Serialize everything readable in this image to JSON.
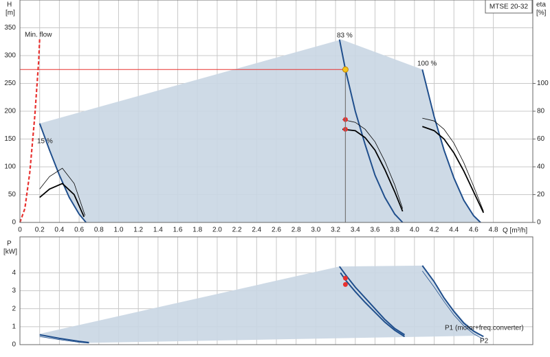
{
  "chart_data": [
    {
      "type": "line",
      "y_label": "H",
      "y_unit": "[m]",
      "y2_label": "eta",
      "y2_unit": "[%]",
      "x_label": "Q [m³/h]",
      "model": "MTSE 20-32",
      "xlim": [
        0,
        5.2
      ],
      "ylim": [
        0,
        400
      ],
      "y2lim": [
        0,
        160
      ],
      "grid": true,
      "xticks": [
        0,
        0.2,
        0.4,
        0.6,
        0.8,
        {
          "value": 1,
          "label": "1.0"
        },
        1.2,
        1.4,
        1.6,
        1.8,
        {
          "value": 2,
          "label": "2.0"
        },
        2.2,
        2.4,
        2.6,
        2.8,
        {
          "value": 3,
          "label": "3.0"
        },
        3.2,
        3.4,
        3.6,
        3.8,
        {
          "value": 4,
          "label": "4.0"
        },
        4.2,
        4.4,
        4.6,
        4.8
      ],
      "yticks": [
        0,
        50,
        100,
        150,
        200,
        250,
        300,
        350
      ],
      "y2ticks": [
        0,
        20,
        40,
        60,
        80,
        100
      ],
      "series": [
        {
          "style": "area",
          "color": "#c9d6e3",
          "x": [
            0.2,
            0.3,
            0.4,
            0.5,
            0.6,
            0.67,
            4.67,
            4.6,
            4.5,
            4.4,
            4.3,
            4.2,
            4.08,
            3.26
          ],
          "values": [
            178,
            130,
            85,
            45,
            15,
            0,
            0,
            12,
            40,
            80,
            130,
            190,
            275,
            329
          ]
        },
        {
          "name": "Min. flow",
          "style": "dashed",
          "color": "#e8312f",
          "x": [
            0,
            0.05,
            0.1,
            0.15,
            0.19,
            0.2
          ],
          "values": [
            0,
            25,
            90,
            190,
            290,
            330
          ]
        },
        {
          "name": "15 %",
          "style": "curve",
          "color": "#1f4e8c",
          "x": [
            0.2,
            0.3,
            0.4,
            0.5,
            0.6,
            0.67
          ],
          "values": [
            178,
            130,
            85,
            45,
            15,
            0
          ]
        },
        {
          "name": "83 %",
          "style": "curve",
          "color": "#1f4e8c",
          "x": [
            3.24,
            3.3,
            3.4,
            3.5,
            3.6,
            3.7,
            3.8,
            3.88
          ],
          "values": [
            329,
            275,
            200,
            140,
            85,
            45,
            15,
            0
          ]
        },
        {
          "name": "100 %",
          "style": "curve",
          "color": "#1f4e8c",
          "x": [
            4.08,
            4.2,
            4.3,
            4.4,
            4.5,
            4.6,
            4.67
          ],
          "values": [
            275,
            190,
            130,
            80,
            40,
            12,
            0
          ]
        },
        {
          "style": "thick",
          "axis": "y2",
          "color": "#000000",
          "x": [
            0.2,
            0.3,
            0.43,
            0.55,
            0.65
          ],
          "values": [
            18,
            24,
            28,
            20,
            4
          ]
        },
        {
          "style": "thin",
          "axis": "y2",
          "color": "#000000",
          "x": [
            0.2,
            0.3,
            0.43,
            0.55,
            0.66
          ],
          "values": [
            24,
            33,
            39,
            28,
            5
          ]
        },
        {
          "style": "thick",
          "axis": "y2",
          "color": "#000000",
          "x": [
            3.27,
            3.4,
            3.5,
            3.6,
            3.7,
            3.8,
            3.88
          ],
          "values": [
            67,
            66,
            61,
            52,
            38,
            22,
            8
          ]
        },
        {
          "style": "thin",
          "axis": "y2",
          "color": "#000000",
          "x": [
            3.27,
            3.4,
            3.5,
            3.6,
            3.7,
            3.8,
            3.88
          ],
          "values": [
            74,
            72,
            67,
            58,
            44,
            27,
            10
          ]
        },
        {
          "style": "thick",
          "axis": "y2",
          "color": "#000000",
          "x": [
            4.08,
            4.2,
            4.3,
            4.4,
            4.5,
            4.6,
            4.7
          ],
          "values": [
            69,
            66,
            60,
            50,
            37,
            22,
            7
          ]
        },
        {
          "style": "thin",
          "axis": "y2",
          "color": "#000000",
          "x": [
            4.08,
            4.2,
            4.3,
            4.4,
            4.5,
            4.6,
            4.7
          ],
          "values": [
            75,
            73,
            67,
            57,
            43,
            26,
            8
          ]
        },
        {
          "style": "marker",
          "axis": "y2",
          "color": "#e8312f",
          "x": [
            3.3,
            3.3
          ],
          "values": [
            74,
            67
          ]
        }
      ],
      "operating_point": {
        "x": 3.3,
        "y": 275,
        "color": "#f5c518",
        "line_color": "#e8312f"
      }
    },
    {
      "type": "line",
      "y_label": "P",
      "y_unit": "[kW]",
      "xlim": [
        0,
        5.2
      ],
      "ylim": [
        0,
        6
      ],
      "grid": true,
      "yticks": [
        0,
        1,
        2,
        3,
        4
      ],
      "series": [
        {
          "style": "area",
          "color": "#c9d6e3",
          "x": [
            0.2,
            3.24,
            4.08,
            4.3,
            4.5,
            4.67,
            0.7,
            0.2
          ],
          "values": [
            0.6,
            4.35,
            4.4,
            2.6,
            1.3,
            0.5,
            0.1,
            0.45
          ]
        },
        {
          "style": "curve",
          "color": "#1f4e8c",
          "x": [
            0.2,
            0.4,
            0.6,
            0.7
          ],
          "values": [
            0.55,
            0.35,
            0.18,
            0.12
          ]
        },
        {
          "style": "thin",
          "color": "#1f4e8c",
          "x": [
            0.2,
            0.4,
            0.6,
            0.7
          ],
          "values": [
            0.45,
            0.28,
            0.13,
            0.08
          ]
        },
        {
          "style": "curve",
          "color": "#1f4e8c",
          "x": [
            3.24,
            3.3,
            3.4,
            3.5,
            3.6,
            3.7,
            3.8,
            3.9
          ],
          "values": [
            4.35,
            3.9,
            3.2,
            2.6,
            2.0,
            1.4,
            0.9,
            0.55
          ]
        },
        {
          "style": "curve",
          "color": "#1f4e8c",
          "x": [
            3.25,
            3.3,
            3.4,
            3.5,
            3.6,
            3.7,
            3.8,
            3.9
          ],
          "values": [
            4.0,
            3.6,
            2.95,
            2.35,
            1.8,
            1.25,
            0.8,
            0.45
          ]
        },
        {
          "name": "P1 (motor+freq.converter)",
          "style": "curve",
          "color": "#1f4e8c",
          "x": [
            4.08,
            4.2,
            4.3,
            4.4,
            4.5,
            4.6,
            4.7
          ],
          "values": [
            4.4,
            3.5,
            2.6,
            1.85,
            1.2,
            0.75,
            0.45
          ]
        },
        {
          "name": "P2",
          "style": "thin",
          "color": "#1f4e8c",
          "x": [
            4.08,
            4.2,
            4.3,
            4.4,
            4.5,
            4.6,
            4.7
          ],
          "values": [
            4.1,
            3.2,
            2.4,
            1.65,
            1.05,
            0.6,
            0.3
          ]
        },
        {
          "style": "marker",
          "color": "#e8312f",
          "x": [
            3.3,
            3.3
          ],
          "values": [
            3.7,
            3.35
          ]
        }
      ]
    }
  ]
}
